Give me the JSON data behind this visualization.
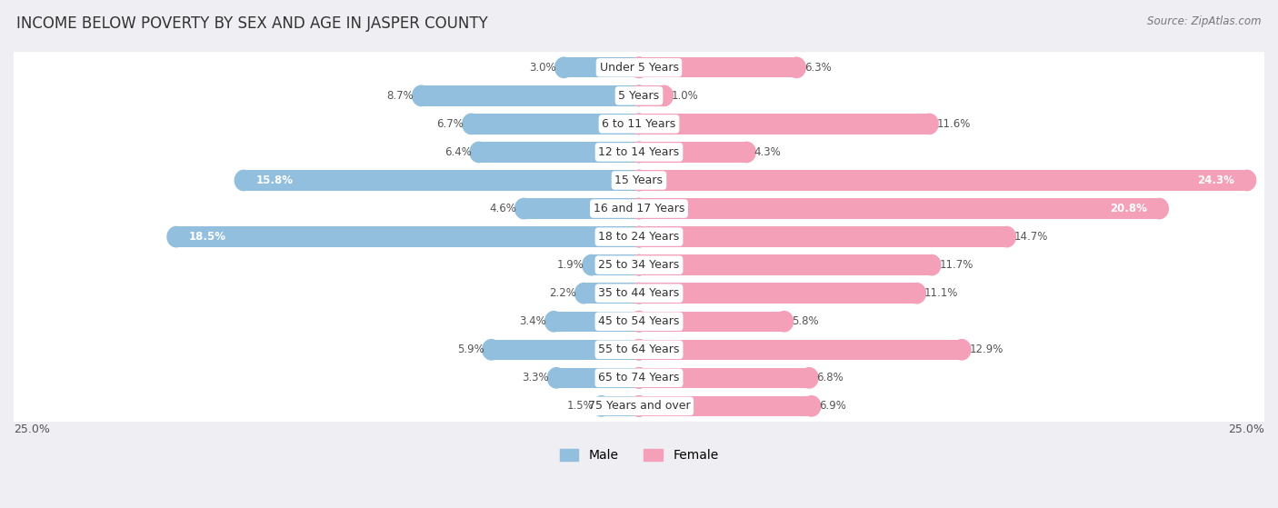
{
  "title": "INCOME BELOW POVERTY BY SEX AND AGE IN JASPER COUNTY",
  "source": "Source: ZipAtlas.com",
  "categories": [
    "Under 5 Years",
    "5 Years",
    "6 to 11 Years",
    "12 to 14 Years",
    "15 Years",
    "16 and 17 Years",
    "18 to 24 Years",
    "25 to 34 Years",
    "35 to 44 Years",
    "45 to 54 Years",
    "55 to 64 Years",
    "65 to 74 Years",
    "75 Years and over"
  ],
  "male": [
    3.0,
    8.7,
    6.7,
    6.4,
    15.8,
    4.6,
    18.5,
    1.9,
    2.2,
    3.4,
    5.9,
    3.3,
    1.5
  ],
  "female": [
    6.3,
    1.0,
    11.6,
    4.3,
    24.3,
    20.8,
    14.7,
    11.7,
    11.1,
    5.8,
    12.9,
    6.8,
    6.9
  ],
  "male_color": "#92bfdd",
  "female_color": "#f4a0b8",
  "male_label": "Male",
  "female_label": "Female",
  "xlim": 25.0,
  "bar_height": 0.72,
  "background_color": "#eeeef3",
  "row_bg_color": "#ffffff",
  "title_fontsize": 12,
  "label_fontsize": 9,
  "value_fontsize": 8.5,
  "axis_label_fontsize": 9
}
